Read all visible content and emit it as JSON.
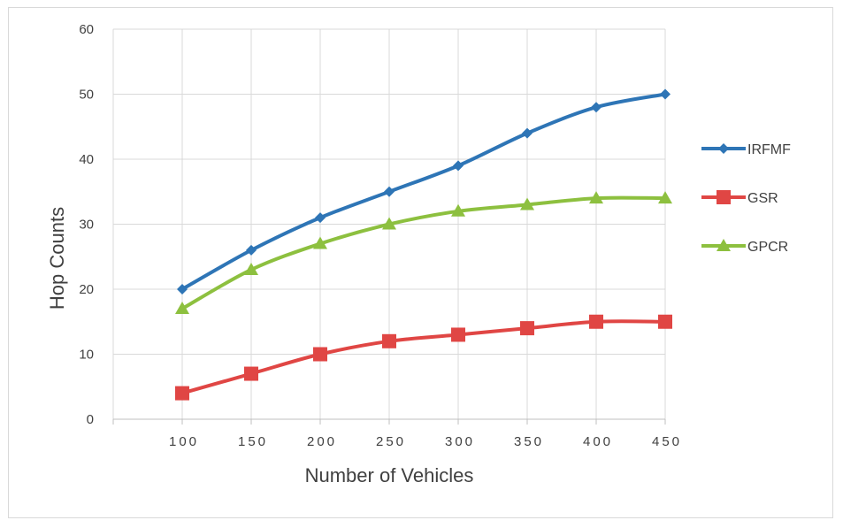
{
  "chart_data": {
    "type": "line",
    "xlabel": "Number of Vehicles",
    "ylabel": "Hop Counts",
    "x": [
      100,
      150,
      200,
      250,
      300,
      350,
      400,
      450
    ],
    "xlim": [
      50,
      450
    ],
    "ylim": [
      0,
      60
    ],
    "yticks": [
      0,
      10,
      20,
      30,
      40,
      50,
      60
    ],
    "grid": true,
    "legend_position": "right",
    "series": [
      {
        "name": "IRFMF",
        "values": [
          20,
          26,
          31,
          35,
          39,
          44,
          48,
          50
        ],
        "color": "#2e75b6",
        "marker": "diamond"
      },
      {
        "name": "GSR",
        "values": [
          4,
          7,
          10,
          12,
          13,
          14,
          15,
          15
        ],
        "color": "#e04644",
        "marker": "square"
      },
      {
        "name": "GPCR",
        "values": [
          17,
          23,
          27,
          30,
          32,
          33,
          34,
          34
        ],
        "color": "#8dc03f",
        "marker": "triangle"
      }
    ]
  }
}
